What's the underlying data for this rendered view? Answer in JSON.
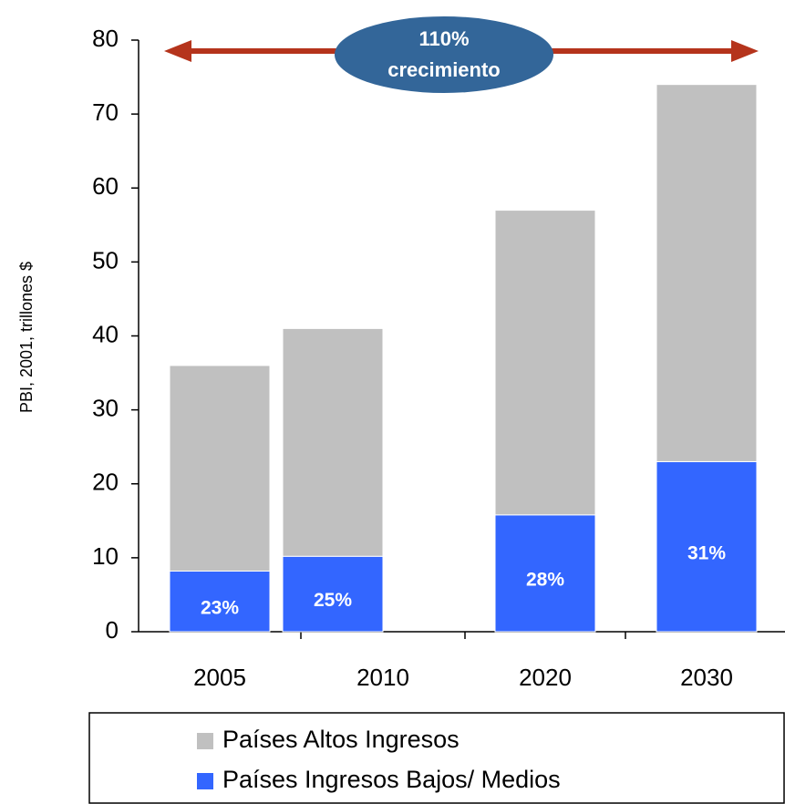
{
  "chart_data": {
    "type": "stacked_bar",
    "y_label": "PBI, 2001, trillones $",
    "annotation": [
      "110%",
      "crecimiento"
    ],
    "categories": [
      "2005",
      "2010",
      "2020",
      "2030"
    ],
    "series": [
      {
        "name": "Países Altos Ingresos",
        "color": "#c0c0c0",
        "values": [
          27.8,
          30.8,
          41.2,
          51
        ]
      },
      {
        "name": "Países Ingresos Bajos/ Medios",
        "color": "#3366ff",
        "values": [
          8.2,
          10.2,
          15.8,
          23
        ]
      }
    ],
    "share_labels": [
      "23%",
      "25%",
      "28%",
      "31%"
    ],
    "ylim": [
      0,
      80
    ],
    "yticks": [
      0,
      10,
      20,
      30,
      40,
      50,
      60,
      70,
      80
    ]
  }
}
